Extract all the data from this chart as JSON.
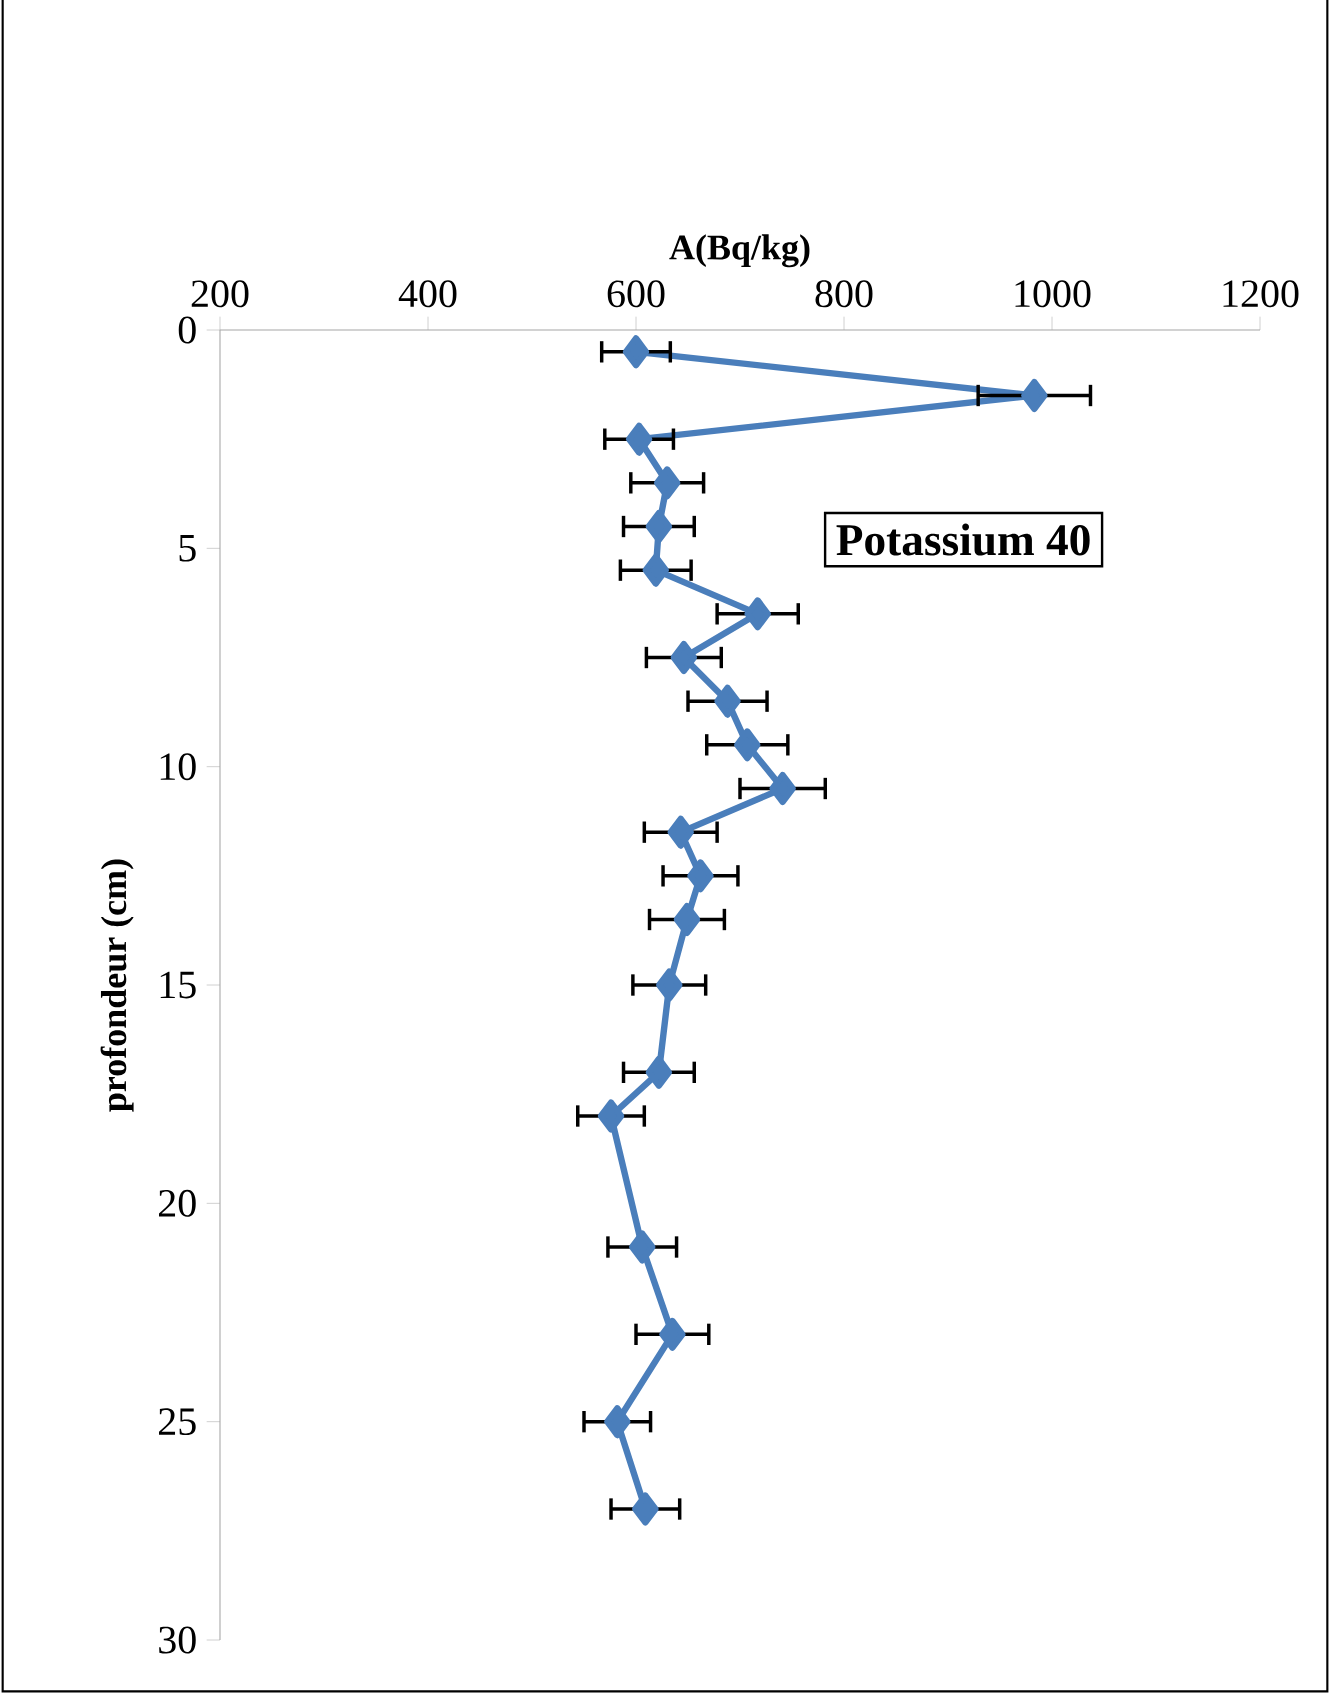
{
  "chart_data": {
    "type": "line",
    "xlabel": "A(Bq/kg)",
    "ylabel": "profondeur (cm)",
    "annotations": [
      "Potassium 40"
    ],
    "x": [
      600,
      983,
      603,
      630,
      622,
      619,
      717,
      646,
      688,
      707,
      741,
      643,
      662,
      649,
      632,
      622,
      576,
      606,
      635,
      582,
      609
    ],
    "values": [
      0.5,
      1.5,
      2.5,
      3.5,
      4.5,
      5.5,
      6.5,
      7.5,
      8.5,
      9.5,
      10.5,
      11.5,
      12.5,
      13.5,
      15,
      17,
      18,
      21,
      23,
      25,
      27
    ],
    "xerrors": [
      33,
      54,
      33,
      35,
      34,
      34,
      39,
      36,
      38,
      39,
      41,
      35,
      36,
      36,
      35,
      34,
      32,
      33,
      35,
      32,
      33
    ],
    "color": "#4a7ebb",
    "marker": "diamond",
    "line_style": "solid",
    "grid": false,
    "xlim": [
      200,
      1200
    ],
    "xticks": [
      200,
      400,
      600,
      800,
      1000,
      1200
    ],
    "ylim": [
      30,
      0
    ],
    "yticks": [
      0,
      5,
      10,
      15,
      20,
      25,
      30
    ]
  }
}
